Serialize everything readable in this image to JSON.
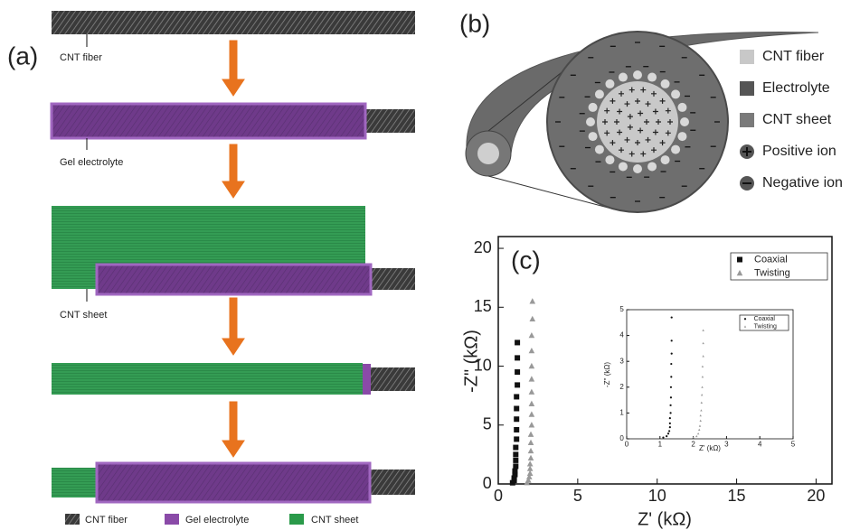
{
  "panel_a": {
    "label": "(a)",
    "annotations": [
      "CNT fiber",
      "Gel electrolyte",
      "CNT sheet"
    ],
    "legend": [
      "CNT fiber",
      "Gel electrolyte",
      "CNT sheet"
    ]
  },
  "panel_b": {
    "label": "(b)",
    "legend": [
      "CNT fiber",
      "Electrolyte",
      "CNT sheet",
      "Positive ion",
      "Negative ion"
    ]
  },
  "chart_data": [
    {
      "type": "scatter",
      "panel_label": "(c)",
      "x_label": "Z' (kΩ)",
      "y_label": "-Z\" (kΩ)",
      "xlim": [
        0,
        21
      ],
      "ylim": [
        0,
        21
      ],
      "xticks": [
        0,
        5,
        10,
        15,
        20
      ],
      "yticks": [
        0,
        5,
        10,
        15,
        20
      ],
      "legend": "upper right",
      "series": [
        {
          "name": "Coaxial",
          "color": "#111111",
          "marker": "square",
          "x": [
            0.9,
            1.0,
            1.0,
            1.05,
            1.05,
            1.1,
            1.1,
            1.1,
            1.1,
            1.15,
            1.15,
            1.15,
            1.15,
            1.15,
            1.2,
            1.2,
            1.2,
            1.2
          ],
          "values": [
            0.1,
            0.3,
            0.5,
            0.8,
            1.1,
            1.5,
            2.0,
            2.5,
            3.1,
            3.8,
            4.6,
            5.5,
            6.4,
            7.4,
            8.4,
            9.5,
            10.7,
            12.0
          ]
        },
        {
          "name": "Twisting",
          "color": "#999999",
          "marker": "triangle",
          "x": [
            1.8,
            1.9,
            1.95,
            2.0,
            2.0,
            2.0,
            2.05,
            2.05,
            2.05,
            2.05,
            2.1,
            2.1,
            2.1,
            2.1,
            2.1,
            2.1,
            2.1,
            2.1,
            2.15,
            2.15
          ],
          "values": [
            0.1,
            0.3,
            0.6,
            0.9,
            1.3,
            1.7,
            2.2,
            2.8,
            3.5,
            4.2,
            5.0,
            5.9,
            6.8,
            7.8,
            8.9,
            10.0,
            11.3,
            12.6,
            14.0,
            15.5
          ]
        }
      ]
    },
    {
      "type": "scatter",
      "x_label": "Z' (kΩ)",
      "y_label": "-Z'' (kΩ)",
      "xlim": [
        0,
        5
      ],
      "ylim": [
        0,
        5
      ],
      "xticks": [
        0,
        1,
        2,
        3,
        4,
        5
      ],
      "yticks": [
        0,
        1,
        2,
        3,
        4,
        5
      ],
      "legend": "upper right",
      "series": [
        {
          "name": "Coaxial",
          "color": "#111111",
          "marker": "circle",
          "x": [
            1.1,
            1.2,
            1.25,
            1.28,
            1.3,
            1.3,
            1.3,
            1.32,
            1.32,
            1.33,
            1.33,
            1.34,
            1.34,
            1.35,
            1.35,
            1.35
          ],
          "values": [
            0.05,
            0.1,
            0.2,
            0.3,
            0.45,
            0.6,
            0.8,
            1.0,
            1.3,
            1.6,
            2.0,
            2.4,
            2.9,
            3.3,
            3.8,
            4.7
          ]
        },
        {
          "name": "Twisting",
          "color": "#999999",
          "marker": "triangle",
          "x": [
            2.0,
            2.1,
            2.15,
            2.18,
            2.2,
            2.22,
            2.22,
            2.24,
            2.25,
            2.26,
            2.27,
            2.28,
            2.28,
            2.3,
            2.3,
            2.3
          ],
          "values": [
            0.05,
            0.1,
            0.2,
            0.35,
            0.5,
            0.7,
            0.9,
            1.1,
            1.4,
            1.7,
            2.0,
            2.4,
            2.8,
            3.2,
            3.7,
            4.2
          ]
        }
      ]
    }
  ]
}
